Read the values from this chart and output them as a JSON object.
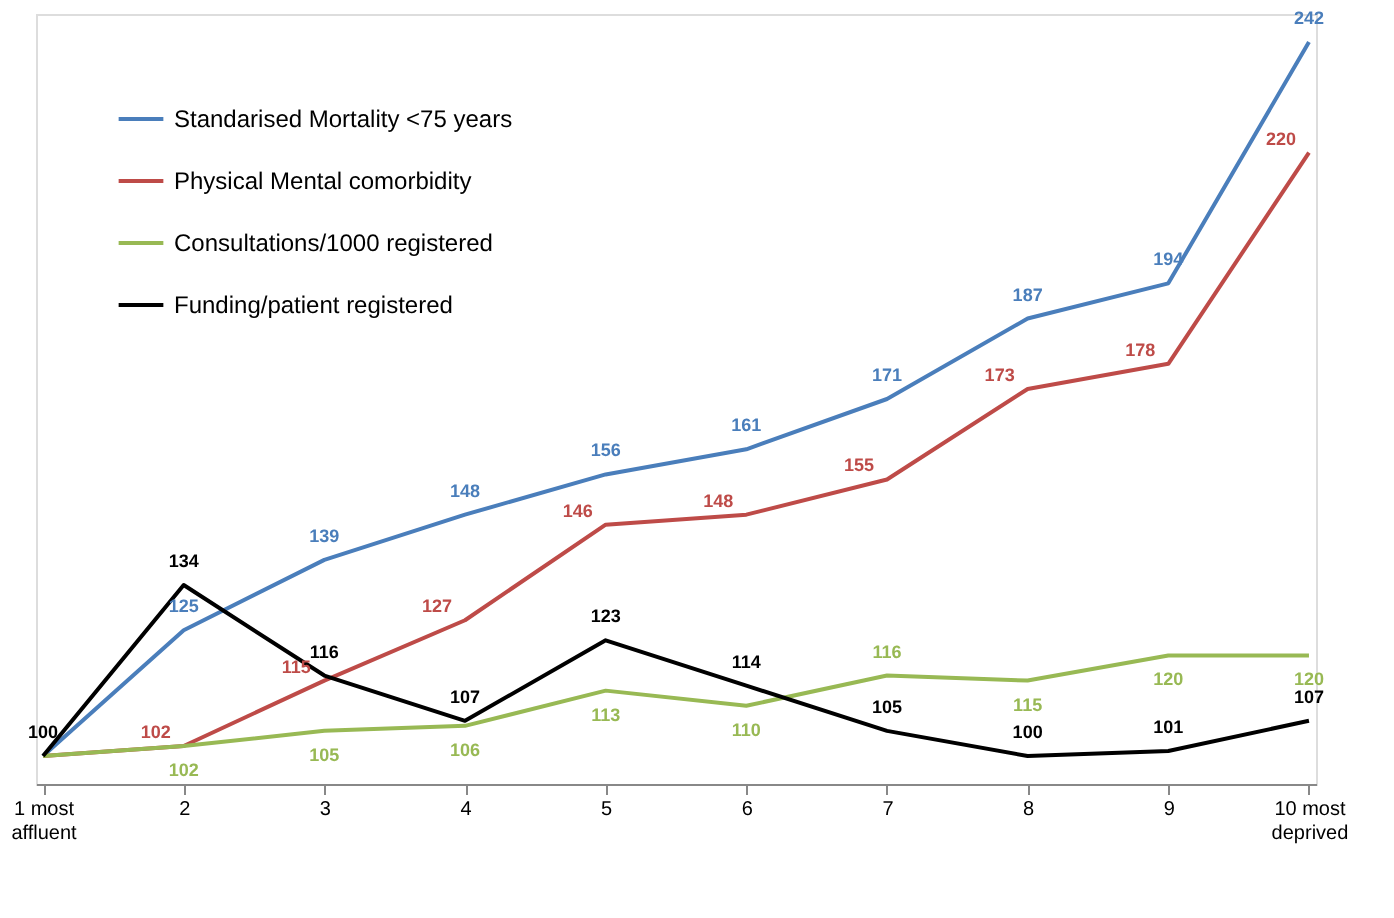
{
  "chart_data": {
    "type": "line",
    "categories": [
      "1 most affluent",
      "2",
      "3",
      "4",
      "5",
      "6",
      "7",
      "8",
      "9",
      "10 most deprived"
    ],
    "series": [
      {
        "name": "Standarised Mortality <75 years",
        "color": "#4a7ebb",
        "values": [
          100,
          125,
          139,
          148,
          156,
          161,
          171,
          187,
          194,
          242
        ],
        "value_labels": [
          null,
          "125",
          "139",
          "148",
          "156",
          "161",
          "171",
          "187",
          "194",
          "242"
        ]
      },
      {
        "name": "Physical Mental comorbidity",
        "color": "#be4b48",
        "values": [
          100,
          102,
          115,
          127,
          146,
          148,
          155,
          173,
          178,
          220
        ],
        "value_labels": [
          null,
          "102",
          "115",
          "127",
          "146",
          "148",
          "155",
          "173",
          "178",
          "220"
        ]
      },
      {
        "name": "Consultations/1000 registered",
        "color": "#98b954",
        "values": [
          100,
          102,
          105,
          106,
          113,
          110,
          116,
          115,
          120,
          120
        ],
        "value_labels": [
          null,
          "102",
          "105",
          "106",
          "113",
          "110",
          "116",
          "115",
          "120",
          "120"
        ]
      },
      {
        "name": "Funding/patient registered",
        "color": "#000000",
        "values": [
          100,
          134,
          116,
          107,
          123,
          114,
          105,
          100,
          101,
          107
        ],
        "value_labels": [
          "100",
          "134",
          "116",
          "107",
          "123",
          "114",
          "105",
          "100",
          "101",
          "107"
        ]
      }
    ],
    "legend": "top left",
    "grid": false,
    "marker": "none",
    "line_style": "solid",
    "tick_labels": "x"
  }
}
